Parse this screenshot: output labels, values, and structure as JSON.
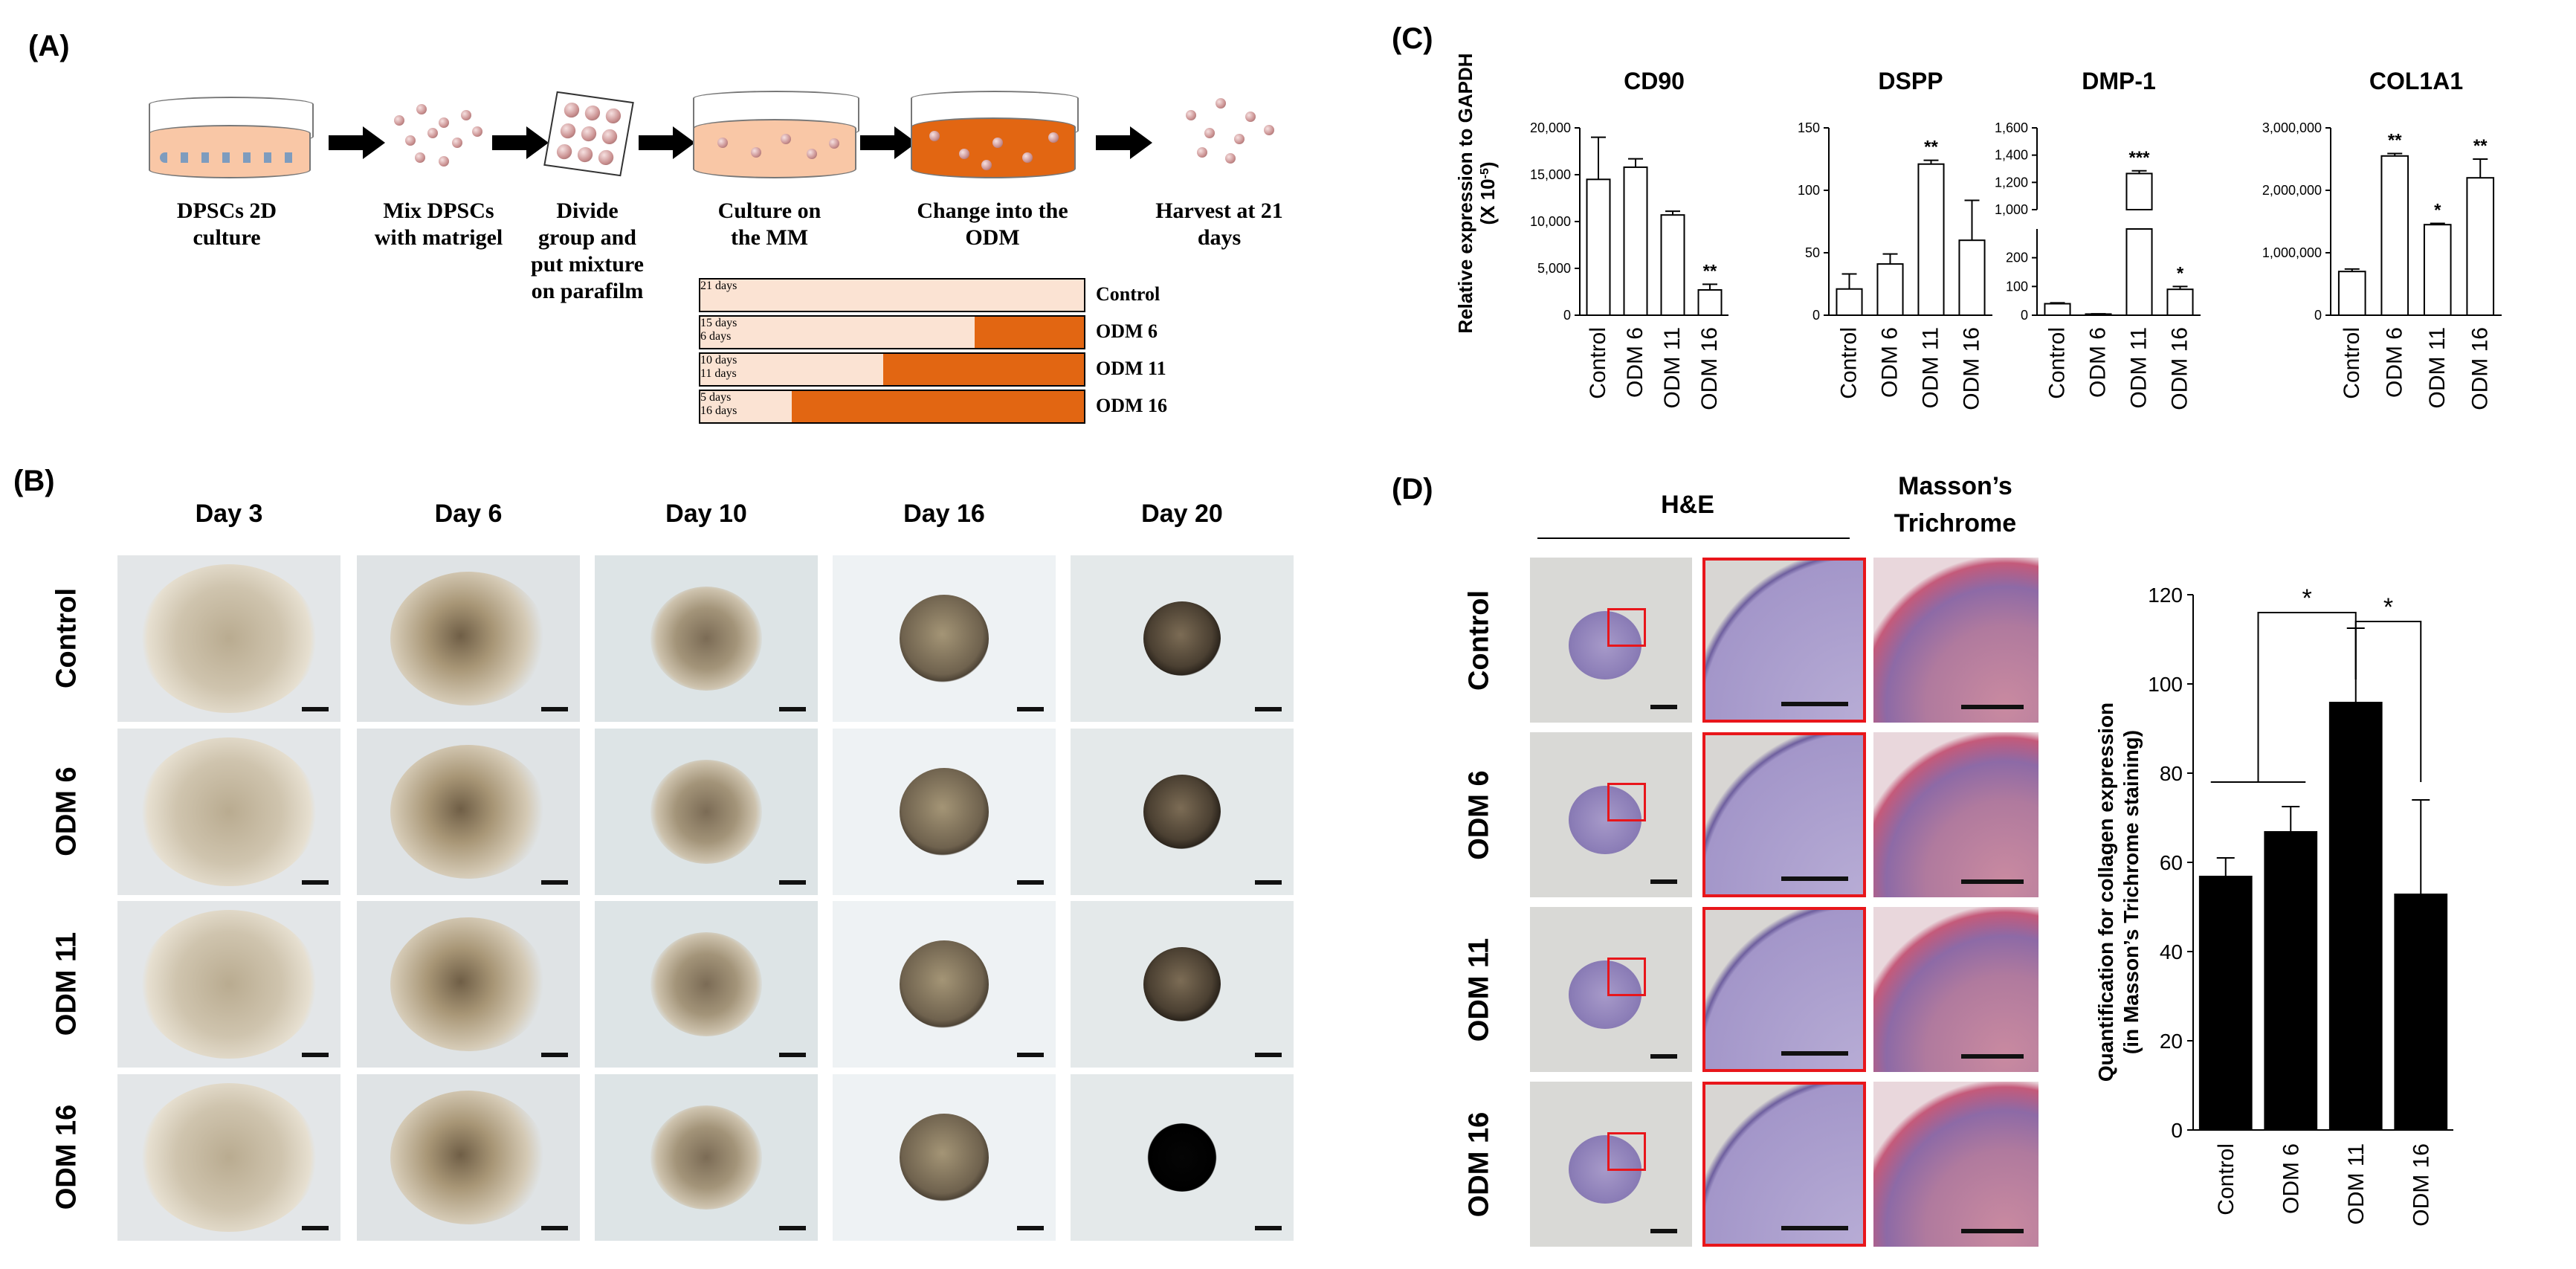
{
  "panelA": {
    "label": "(A)",
    "steps": [
      {
        "text": "DPSCs 2D culture"
      },
      {
        "text": "Mix DPSCs with matrigel"
      },
      {
        "text": "Divide group and put mixture on parafilm"
      },
      {
        "text": "Culture on the MM"
      },
      {
        "text": "Change into the ODM"
      },
      {
        "text": "Harvest at 21 days"
      }
    ],
    "timeline": [
      {
        "group": "Control",
        "mm_label": "21 days",
        "odm_label": "",
        "odm_days": 0,
        "total_days": 21
      },
      {
        "group": "ODM 6",
        "mm_label": "15 days",
        "odm_label": "6 days",
        "odm_days": 6,
        "total_days": 21
      },
      {
        "group": "ODM 11",
        "mm_label": "10 days",
        "odm_label": "11 days",
        "odm_days": 11,
        "total_days": 21
      },
      {
        "group": "ODM 16",
        "mm_label": "5 days",
        "odm_label": "16 days",
        "odm_days": 16,
        "total_days": 21
      }
    ],
    "colors": {
      "mm": "#fbe3d3",
      "odm": "#e26612",
      "dish_mm": "#f9c7a6"
    }
  },
  "panelB": {
    "label": "(B)",
    "days": [
      "Day 3",
      "Day 6",
      "Day 10",
      "Day 16",
      "Day 20"
    ],
    "groups": [
      "Control",
      "ODM 6",
      "ODM 11",
      "ODM 16"
    ]
  },
  "panelC": {
    "label": "(C)",
    "ylabel": "Relative expression to GAPDH",
    "ylabel_unit_prefix": "(X 10",
    "ylabel_unit_exp": "-5",
    "ylabel_unit_suffix": ")"
  },
  "panelD": {
    "label": "(D)",
    "he_label": "H&E",
    "masson_label_line1": "Masson’s",
    "masson_label_line2": "Trichrome",
    "groups": [
      "Control",
      "ODM 6",
      "ODM 11",
      "ODM 16"
    ]
  },
  "chart_data": [
    {
      "type": "bar",
      "title": "CD90",
      "categories": [
        "Control",
        "ODM 6",
        "ODM 11",
        "ODM 16"
      ],
      "values": [
        14500,
        15800,
        10700,
        2700
      ],
      "errors": [
        4500,
        900,
        400,
        600
      ],
      "significance": [
        "",
        "",
        "",
        "**"
      ],
      "ylim": [
        0,
        20000
      ],
      "yticks": [
        0,
        5000,
        10000,
        15000,
        20000
      ],
      "yticklabels": [
        "0",
        "5,000",
        "10,000",
        "15,000",
        "20,000"
      ]
    },
    {
      "type": "bar",
      "title": "DSPP",
      "categories": [
        "Control",
        "ODM 6",
        "ODM 11",
        "ODM 16"
      ],
      "values": [
        21,
        41,
        121,
        60
      ],
      "errors": [
        12,
        8,
        3,
        32
      ],
      "significance": [
        "",
        "",
        "**",
        ""
      ],
      "ylim": [
        0,
        150
      ],
      "yticks": [
        0,
        50,
        100,
        150
      ],
      "yticklabels": [
        "0",
        "50",
        "100",
        "150"
      ]
    },
    {
      "type": "bar",
      "title": "DMP-1",
      "categories": [
        "Control",
        "ODM 6",
        "ODM 11",
        "ODM 16"
      ],
      "values": [
        40,
        4,
        1265,
        90
      ],
      "errors": [
        3,
        1,
        20,
        10
      ],
      "significance": [
        "",
        "",
        "***",
        "*"
      ],
      "broken_axis": true,
      "lower_range": [
        0,
        300
      ],
      "upper_range": [
        1000,
        1600
      ],
      "yticks_lower": [
        0,
        100,
        200
      ],
      "yticklabels_lower": [
        "0",
        "100",
        "200"
      ],
      "yticks_upper": [
        1000,
        1200,
        1400,
        1600
      ],
      "yticklabels_upper": [
        "1,000",
        "1,200",
        "1,400",
        "1,600"
      ]
    },
    {
      "type": "bar",
      "title": "COL1A1",
      "categories": [
        "Control",
        "ODM 6",
        "ODM 11",
        "ODM 16"
      ],
      "values": [
        700000,
        2550000,
        1450000,
        2200000
      ],
      "errors": [
        40000,
        40000,
        20000,
        300000
      ],
      "significance": [
        "",
        "**",
        "*",
        "**"
      ],
      "ylim": [
        0,
        3000000
      ],
      "yticks": [
        0,
        1000000,
        2000000,
        3000000
      ],
      "yticklabels": [
        "0",
        "1,000,000",
        "2,000,000",
        "3,000,000"
      ]
    },
    {
      "type": "bar",
      "title": "",
      "categories": [
        "Control",
        "ODM 6",
        "ODM 11",
        "ODM 16"
      ],
      "values": [
        57,
        67,
        96,
        53
      ],
      "errors": [
        4,
        5.5,
        16.5,
        21
      ],
      "ylim": [
        0,
        120
      ],
      "yticks": [
        0,
        20,
        40,
        60,
        80,
        100,
        120
      ],
      "yticklabels": [
        "0",
        "20",
        "40",
        "60",
        "80",
        "100",
        "120"
      ],
      "ylabel_line1": "Quantification for collagen expression",
      "ylabel_line2": "(in Masson’s Trichrome staining)",
      "brackets": [
        {
          "label": "*"
        },
        {
          "label": "*"
        }
      ]
    }
  ]
}
